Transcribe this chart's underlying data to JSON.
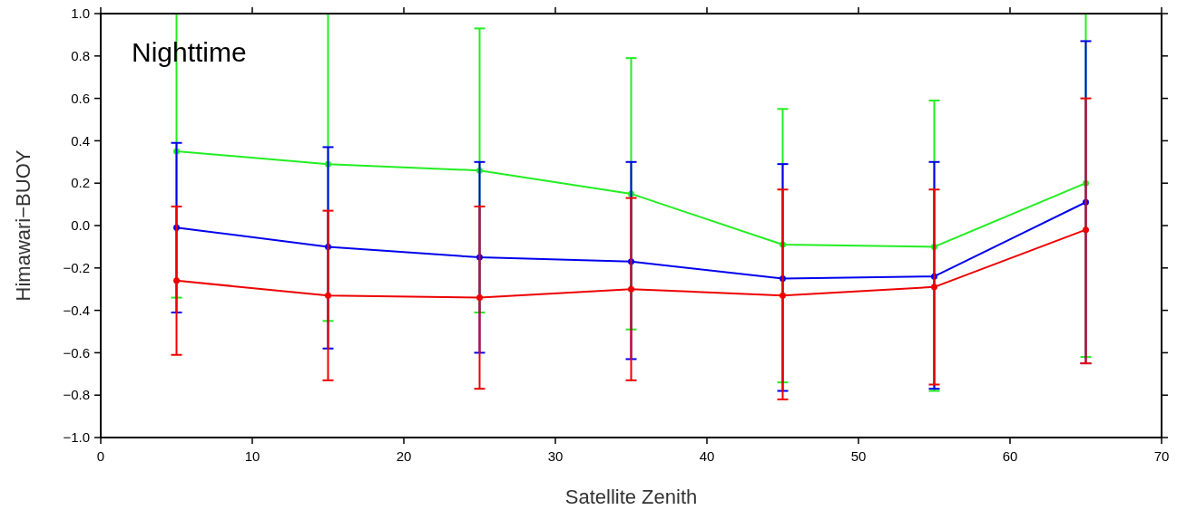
{
  "chart_data": {
    "type": "line",
    "xlabel": "Satellite Zenith",
    "ylabel": "Himawari−BUOY",
    "annotations": [
      "Nighttime"
    ],
    "x": [
      5,
      15,
      25,
      35,
      45,
      55,
      65
    ],
    "xlim": [
      0,
      70
    ],
    "xticks": [
      0,
      10,
      20,
      30,
      40,
      50,
      60,
      70
    ],
    "ylim": [
      -1,
      1
    ],
    "yticks": [
      {
        "value": -1,
        "label": "−1.0"
      },
      {
        "value": -0.8,
        "label": "−0.8"
      },
      {
        "value": -0.6,
        "label": "−0.6"
      },
      {
        "value": -0.4,
        "label": "−0.4"
      },
      {
        "value": -0.2,
        "label": "−0.2"
      },
      {
        "value": 0,
        "label": "0.0"
      },
      {
        "value": 0.2,
        "label": "0.2"
      },
      {
        "value": 0.4,
        "label": "0.4"
      },
      {
        "value": 0.6,
        "label": "0.6"
      },
      {
        "value": 0.8,
        "label": "0.8"
      },
      {
        "value": 1,
        "label": "1.0"
      }
    ],
    "grid": false,
    "marker": "circle",
    "line_style": "solid",
    "series": [
      {
        "color": "#22ee22",
        "values": [
          0.35,
          0.29,
          0.26,
          0.15,
          -0.09,
          -0.1,
          0.2
        ],
        "errors": [
          [
            -0.34,
            1.0
          ],
          [
            -0.45,
            1.0
          ],
          [
            -0.41,
            0.93
          ],
          [
            -0.49,
            0.79
          ],
          [
            -0.74,
            0.55
          ],
          [
            -0.78,
            0.59
          ],
          [
            -0.62,
            1.0
          ]
        ]
      },
      {
        "color": "#0000ee",
        "values": [
          -0.01,
          -0.1,
          -0.15,
          -0.17,
          -0.25,
          -0.24,
          0.11
        ],
        "errors": [
          [
            -0.41,
            0.39
          ],
          [
            -0.58,
            0.37
          ],
          [
            -0.6,
            0.3
          ],
          [
            -0.63,
            0.3
          ],
          [
            -0.78,
            0.29
          ],
          [
            -0.77,
            0.3
          ],
          [
            -0.65,
            0.87
          ]
        ]
      },
      {
        "color": "#ee0000",
        "values": [
          -0.26,
          -0.33,
          -0.34,
          -0.3,
          -0.33,
          -0.29,
          -0.02
        ],
        "errors": [
          [
            -0.61,
            0.09
          ],
          [
            -0.73,
            0.07
          ],
          [
            -0.77,
            0.09
          ],
          [
            -0.73,
            0.13
          ],
          [
            -0.82,
            0.17
          ],
          [
            -0.75,
            0.17
          ],
          [
            -0.65,
            0.6
          ]
        ]
      }
    ]
  }
}
